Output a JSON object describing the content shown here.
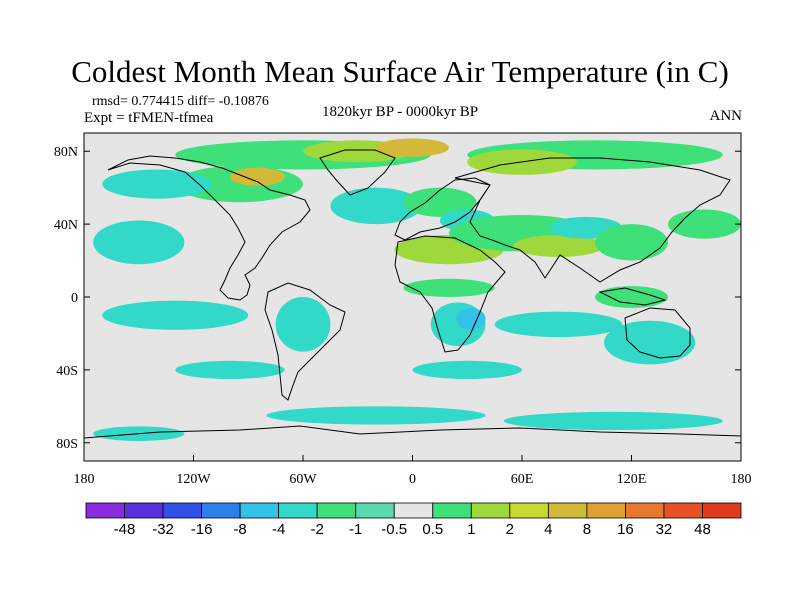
{
  "title": "Coldest Month Mean Surface Air Temperature (in C)",
  "stats": "rmsd= 0.774415 diff= -0.10876",
  "experiment": "Expt = tFMEN-tfmea",
  "period": "1820kyr BP - 0000kyr BP",
  "season": "ANN",
  "map": {
    "lon_range": [
      -180,
      180
    ],
    "lat_range": [
      -90,
      90
    ],
    "lat_labels": [
      {
        "lat": 80,
        "text": "80N"
      },
      {
        "lat": 40,
        "text": "40N"
      },
      {
        "lat": 0,
        "text": "0"
      },
      {
        "lat": -40,
        "text": "40S"
      },
      {
        "lat": -80,
        "text": "80S"
      }
    ],
    "lon_labels": [
      {
        "lon": -180,
        "text": "180"
      },
      {
        "lon": -120,
        "text": "120W"
      },
      {
        "lon": -60,
        "text": "60W"
      },
      {
        "lon": 0,
        "text": "0"
      },
      {
        "lon": 60,
        "text": "60E"
      },
      {
        "lon": 120,
        "text": "120E"
      },
      {
        "lon": 180,
        "text": "180"
      }
    ],
    "anomaly_patches": [
      {
        "color": "#3ee07a",
        "lon": -60,
        "lat": 78,
        "rx": 70,
        "ry": 8
      },
      {
        "color": "#9ed83a",
        "lon": -30,
        "lat": 80,
        "rx": 30,
        "ry": 6
      },
      {
        "color": "#d4b838",
        "lon": 0,
        "lat": 82,
        "rx": 20,
        "ry": 5
      },
      {
        "color": "#3ee07a",
        "lon": 100,
        "lat": 78,
        "rx": 70,
        "ry": 8
      },
      {
        "color": "#9ed83a",
        "lon": 60,
        "lat": 74,
        "rx": 30,
        "ry": 7
      },
      {
        "color": "#3ee07a",
        "lon": -95,
        "lat": 62,
        "rx": 35,
        "ry": 10
      },
      {
        "color": "#d4b838",
        "lon": -85,
        "lat": 66,
        "rx": 15,
        "ry": 5
      },
      {
        "color": "#32d8c8",
        "lon": -140,
        "lat": 62,
        "rx": 30,
        "ry": 8
      },
      {
        "color": "#32d8c8",
        "lon": -20,
        "lat": 50,
        "rx": 25,
        "ry": 10
      },
      {
        "color": "#3ee07a",
        "lon": 15,
        "lat": 52,
        "rx": 20,
        "ry": 8
      },
      {
        "color": "#32d8c8",
        "lon": 30,
        "lat": 42,
        "rx": 15,
        "ry": 6
      },
      {
        "color": "#9ed83a",
        "lon": 20,
        "lat": 26,
        "rx": 30,
        "ry": 8
      },
      {
        "color": "#3ee07a",
        "lon": 60,
        "lat": 35,
        "rx": 40,
        "ry": 10
      },
      {
        "color": "#9ed83a",
        "lon": 80,
        "lat": 28,
        "rx": 25,
        "ry": 6
      },
      {
        "color": "#32d8c8",
        "lon": 95,
        "lat": 38,
        "rx": 20,
        "ry": 6
      },
      {
        "color": "#3ee07a",
        "lon": 120,
        "lat": 30,
        "rx": 20,
        "ry": 10
      },
      {
        "color": "#3ee07a",
        "lon": 160,
        "lat": 40,
        "rx": 20,
        "ry": 8
      },
      {
        "color": "#32d8c8",
        "lon": -150,
        "lat": 30,
        "rx": 25,
        "ry": 12
      },
      {
        "color": "#32d8c8",
        "lon": -130,
        "lat": -10,
        "rx": 40,
        "ry": 8
      },
      {
        "color": "#32d8c8",
        "lon": -60,
        "lat": -15,
        "rx": 15,
        "ry": 15
      },
      {
        "color": "#3ee07a",
        "lon": 20,
        "lat": 5,
        "rx": 25,
        "ry": 5
      },
      {
        "color": "#32d8c8",
        "lon": 25,
        "lat": -15,
        "rx": 15,
        "ry": 12
      },
      {
        "color": "#33c3e8",
        "lon": 32,
        "lat": -12,
        "rx": 8,
        "ry": 6
      },
      {
        "color": "#32d8c8",
        "lon": 80,
        "lat": -15,
        "rx": 35,
        "ry": 7
      },
      {
        "color": "#32d8c8",
        "lon": 130,
        "lat": -25,
        "rx": 25,
        "ry": 12
      },
      {
        "color": "#3ee07a",
        "lon": 120,
        "lat": 0,
        "rx": 20,
        "ry": 6
      },
      {
        "color": "#32d8c8",
        "lon": -100,
        "lat": -40,
        "rx": 30,
        "ry": 5
      },
      {
        "color": "#32d8c8",
        "lon": 30,
        "lat": -40,
        "rx": 30,
        "ry": 5
      },
      {
        "color": "#32d8c8",
        "lon": -20,
        "lat": -65,
        "rx": 60,
        "ry": 5
      },
      {
        "color": "#32d8c8",
        "lon": 110,
        "lat": -68,
        "rx": 60,
        "ry": 5
      },
      {
        "color": "#32d8c8",
        "lon": -150,
        "lat": -75,
        "rx": 25,
        "ry": 4
      }
    ]
  },
  "colorbar": {
    "colors": [
      "#8a2be2",
      "#5b2fe0",
      "#3050e8",
      "#2e7fe8",
      "#33c3e8",
      "#32d8c8",
      "#3ee07a",
      "#5ad8b0",
      "#e5e5e5",
      "#3ee07a",
      "#9ed83a",
      "#c8d830",
      "#d4b838",
      "#e0a030",
      "#e87830",
      "#e85025",
      "#e03a1e"
    ],
    "labels": [
      "-48",
      "-32",
      "-16",
      "-8",
      "-4",
      "-2",
      "-1",
      "-0.5",
      "0.5",
      "1",
      "2",
      "4",
      "8",
      "16",
      "32",
      "48"
    ]
  }
}
